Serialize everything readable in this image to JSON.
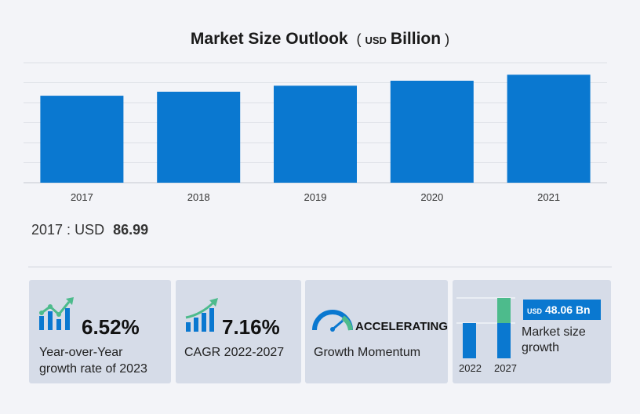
{
  "chart_data": {
    "type": "bar",
    "title": "Market Size Outlook",
    "unit_prefix": "USD",
    "unit": "Billion",
    "categories": [
      "2017",
      "2018",
      "2019",
      "2020",
      "2021"
    ],
    "values": [
      86.99,
      91.0,
      97.0,
      102.0,
      108.0
    ],
    "ylim": [
      0,
      120
    ],
    "grid": true,
    "bar_color": "#0a78d0"
  },
  "highlight": {
    "year": "2017",
    "currency": "USD",
    "value": "86.99"
  },
  "cards": {
    "yoy": {
      "value": "6.52%",
      "desc_line1": "Year-over-Year",
      "desc_line2": "growth rate of 2023",
      "icon": "growth-chart-icon"
    },
    "cagr": {
      "value": "7.16%",
      "desc": "CAGR 2022-2027",
      "icon": "bar-trend-icon"
    },
    "momentum": {
      "value": "ACCELERATING",
      "desc": "Growth Momentum",
      "icon": "speedometer-icon"
    },
    "growth": {
      "currency": "USD",
      "value": "48.06 Bn",
      "desc_line1": "Market size",
      "desc_line2": "growth",
      "year_start": "2022",
      "year_end": "2027",
      "colors": {
        "base": "#0a78d0",
        "growth": "#4dbb8c"
      }
    }
  },
  "colors": {
    "accent": "#0a78d0",
    "card_bg": "#d6dce8",
    "page_bg": "#f3f4f8"
  }
}
